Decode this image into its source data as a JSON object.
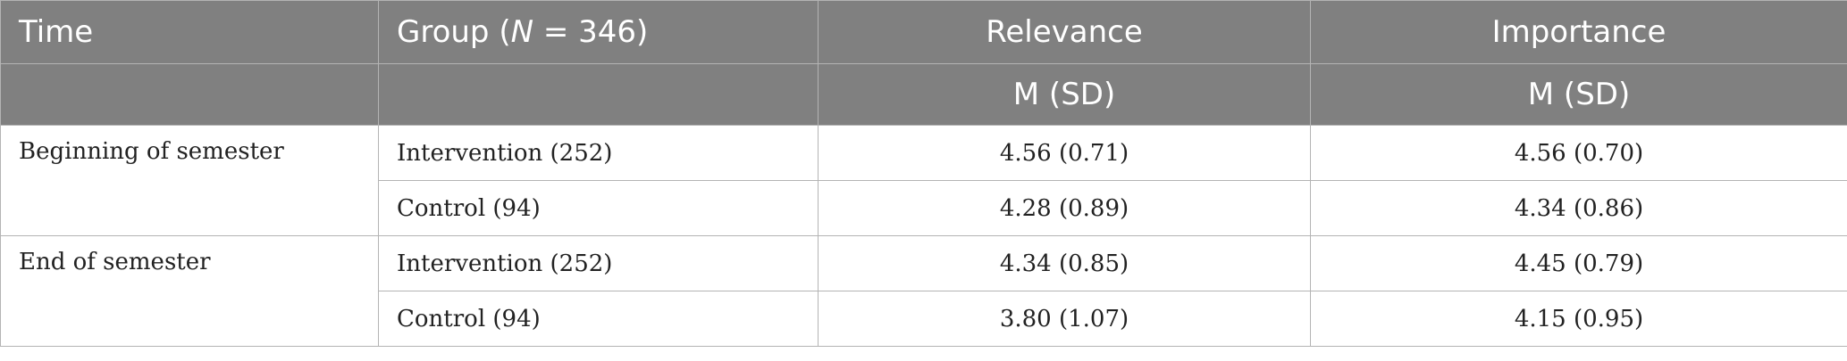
{
  "table": {
    "headers": {
      "time": "Time",
      "group_prefix": "Group (",
      "group_italic": "N",
      "group_suffix": " = 346)",
      "relevance": "Relevance",
      "importance": "Importance",
      "relevance_sub": "M (SD)",
      "importance_sub": "M (SD)"
    },
    "sections": [
      {
        "time": "Beginning of semester",
        "rows": [
          {
            "group": "Intervention (252)",
            "relevance": "4.56 (0.71)",
            "importance": "4.56 (0.70)"
          },
          {
            "group": "Control (94)",
            "relevance": "4.28 (0.89)",
            "importance": "4.34 (0.86)"
          }
        ]
      },
      {
        "time": "End of semester",
        "rows": [
          {
            "group": "Intervention (252)",
            "relevance": "4.34 (0.85)",
            "importance": "4.45 (0.79)"
          },
          {
            "group": "Control (94)",
            "relevance": "3.80 (1.07)",
            "importance": "4.15 (0.95)"
          }
        ]
      }
    ]
  },
  "colors": {
    "header_background": "#808080",
    "header_text": "#ffffff",
    "grid_lines": "#b4b4b4"
  }
}
